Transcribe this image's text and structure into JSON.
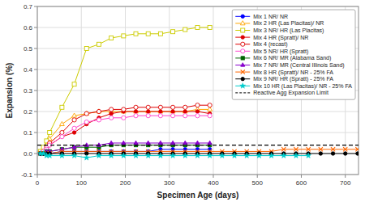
{
  "chart_data": {
    "type": "line",
    "xlabel": "Specimen Age (days)",
    "ylabel": "Expansion (%)",
    "xlim": [
      0,
      730
    ],
    "ylim": [
      -0.1,
      0.7
    ],
    "xticks": [
      0,
      100,
      200,
      300,
      400,
      500,
      600,
      700
    ],
    "yticks": [
      -0.1,
      {
        "value": 0.0,
        "label": "0.0"
      },
      0.1,
      0.2,
      0.3,
      0.4,
      0.5,
      0.6,
      0.7
    ],
    "grid": true,
    "legend": "upper right",
    "series": [
      {
        "name": "Mix 1 NR/ NR",
        "color": "#0000FF",
        "marker": "circle",
        "x": [
          7,
          14,
          21,
          28,
          56,
          84,
          112,
          140,
          168,
          196,
          224,
          252,
          280,
          308,
          336,
          364,
          392
        ],
        "values": [
          0.0,
          0.0,
          0.0,
          0.0,
          0.01,
          0.01,
          0.01,
          0.01,
          0.01,
          0.01,
          0.01,
          0.01,
          0.02,
          0.02,
          0.02,
          0.02,
          0.02
        ]
      },
      {
        "name": "Mix 2 HR (Las Placitas)/ NR",
        "color": "#FFA500",
        "marker": "triangle-open",
        "x": [
          7,
          14,
          21,
          28,
          56,
          84,
          112,
          140,
          168,
          196,
          224,
          252,
          280,
          308,
          336,
          364,
          392
        ],
        "values": [
          0.01,
          0.02,
          0.04,
          0.07,
          0.14,
          0.18,
          0.19,
          0.2,
          0.2,
          0.2,
          0.2,
          0.2,
          0.2,
          0.2,
          0.2,
          0.21,
          0.21
        ]
      },
      {
        "name": "Mix 3 NR/ HR (Las Placitas)",
        "color": "#CCCC00",
        "marker": "square-open",
        "x": [
          7,
          14,
          21,
          28,
          56,
          84,
          112,
          140,
          168,
          196,
          224,
          252,
          280,
          308,
          336,
          364,
          392
        ],
        "values": [
          0.01,
          0.03,
          0.06,
          0.1,
          0.22,
          0.33,
          0.5,
          0.52,
          0.55,
          0.56,
          0.57,
          0.57,
          0.57,
          0.58,
          0.59,
          0.6,
          0.6
        ]
      },
      {
        "name": "Mix 4 HR (Spratt)/ NR",
        "color": "#DD0000",
        "marker": "circle",
        "x": [
          7,
          14,
          21,
          28,
          56,
          84,
          112,
          140,
          168,
          196,
          224,
          252,
          280,
          308,
          336,
          364,
          392
        ],
        "values": [
          0.0,
          0.01,
          0.02,
          0.04,
          0.08,
          0.1,
          0.14,
          0.17,
          0.19,
          0.2,
          0.2,
          0.2,
          0.2,
          0.2,
          0.2,
          0.2,
          0.19
        ]
      },
      {
        "name": "Mix 4 (recast)",
        "color": "#DD0000",
        "marker": "circle-open",
        "x": [
          7,
          14,
          21,
          28,
          56,
          84,
          112,
          140,
          168,
          196,
          224,
          252,
          280,
          308,
          336,
          364,
          392
        ],
        "values": [
          0.0,
          0.01,
          0.03,
          0.05,
          0.1,
          0.16,
          0.19,
          0.2,
          0.21,
          0.21,
          0.22,
          0.22,
          0.22,
          0.22,
          0.22,
          0.23,
          0.23
        ]
      },
      {
        "name": "Mix 5 NR/ HR (Spratt)",
        "color": "#FF44CC",
        "marker": "circle-open",
        "x": [
          7,
          14,
          21,
          28,
          56,
          84,
          112,
          140,
          168,
          196,
          224,
          252,
          280,
          308,
          336,
          364,
          392
        ],
        "values": [
          0.0,
          0.01,
          0.02,
          0.04,
          0.08,
          0.12,
          0.15,
          0.16,
          0.17,
          0.17,
          0.18,
          0.18,
          0.18,
          0.18,
          0.18,
          0.18,
          0.18
        ]
      },
      {
        "name": "Mix 6 NR/ MR (Alabama Sand)",
        "color": "#006400",
        "marker": "square",
        "x": [
          7,
          14,
          21,
          28,
          56,
          84,
          112,
          140,
          168,
          196,
          224,
          252,
          280,
          308,
          336,
          364,
          392
        ],
        "values": [
          0.0,
          0.0,
          0.01,
          0.01,
          0.02,
          0.03,
          0.03,
          0.03,
          0.04,
          0.04,
          0.04,
          0.04,
          0.04,
          0.04,
          0.04,
          0.04,
          0.04
        ]
      },
      {
        "name": "Mix 7 NR/ MR (Central Illinois Sand)",
        "color": "#8800CC",
        "marker": "triangle",
        "x": [
          7,
          14,
          21,
          28,
          56,
          84,
          112,
          140,
          168,
          196,
          224,
          252,
          280,
          308,
          336,
          364,
          392
        ],
        "values": [
          0.0,
          0.0,
          0.01,
          0.01,
          0.02,
          0.03,
          0.04,
          0.04,
          0.05,
          0.05,
          0.05,
          0.05,
          0.05,
          0.05,
          0.05,
          0.05,
          0.05
        ]
      },
      {
        "name": "Mix 8 HR (Spratt)/ NR - 25% FA",
        "color": "#FF6600",
        "marker": "x",
        "x": [
          7,
          14,
          21,
          28,
          56,
          84,
          112,
          140,
          168,
          196,
          224,
          252,
          280,
          308,
          336,
          364,
          392,
          420,
          448,
          476,
          504,
          532,
          560,
          588,
          616,
          644,
          672,
          700,
          728
        ],
        "values": [
          0.0,
          0.0,
          0.0,
          0.0,
          0.01,
          0.01,
          0.01,
          0.01,
          0.01,
          0.01,
          0.01,
          0.01,
          0.01,
          0.01,
          0.01,
          0.01,
          0.01,
          0.01,
          0.01,
          0.01,
          0.01,
          0.01,
          0.02,
          0.02,
          0.02,
          0.02,
          0.02,
          0.02,
          0.02
        ]
      },
      {
        "name": "Mix 9 NR/ HR (Spratt) - 25% FA",
        "color": "#000000",
        "marker": "circle",
        "x": [
          7,
          14,
          21,
          28,
          56,
          84,
          112,
          140,
          168,
          196,
          224,
          252,
          280,
          308,
          336,
          364,
          392,
          420,
          448,
          476,
          504,
          532,
          560,
          588,
          616,
          644,
          672,
          700,
          728
        ],
        "values": [
          0.0,
          0.0,
          0.0,
          0.0,
          0.0,
          0.0,
          0.0,
          0.0,
          0.0,
          0.0,
          0.0,
          0.0,
          0.0,
          0.0,
          0.0,
          0.0,
          0.0,
          0.0,
          0.0,
          0.0,
          0.0,
          0.0,
          0.0,
          0.0,
          0.0,
          0.0,
          0.0,
          0.0,
          0.0
        ]
      },
      {
        "name": "Mix 10 HR (Las Placitas)/ NR - 25% FA",
        "color": "#00CCCC",
        "marker": "star",
        "x": [
          7,
          14,
          21,
          28,
          56,
          84,
          112,
          140,
          168,
          196,
          224,
          252,
          280,
          308,
          336,
          364,
          392,
          420,
          448,
          476,
          504,
          532,
          560,
          588,
          616
        ],
        "values": [
          0.0,
          0.0,
          -0.01,
          -0.01,
          -0.01,
          -0.01,
          -0.02,
          -0.01,
          -0.01,
          -0.01,
          -0.01,
          -0.01,
          -0.01,
          -0.01,
          -0.01,
          -0.01,
          -0.01,
          -0.01,
          -0.01,
          -0.01,
          -0.01,
          -0.01,
          -0.01,
          -0.01,
          -0.01
        ]
      },
      {
        "name": "Reactive Agg Expansion Limit",
        "type": "hline",
        "color": "#000000",
        "line_style": "dashed",
        "values": [
          0.04
        ]
      }
    ]
  }
}
